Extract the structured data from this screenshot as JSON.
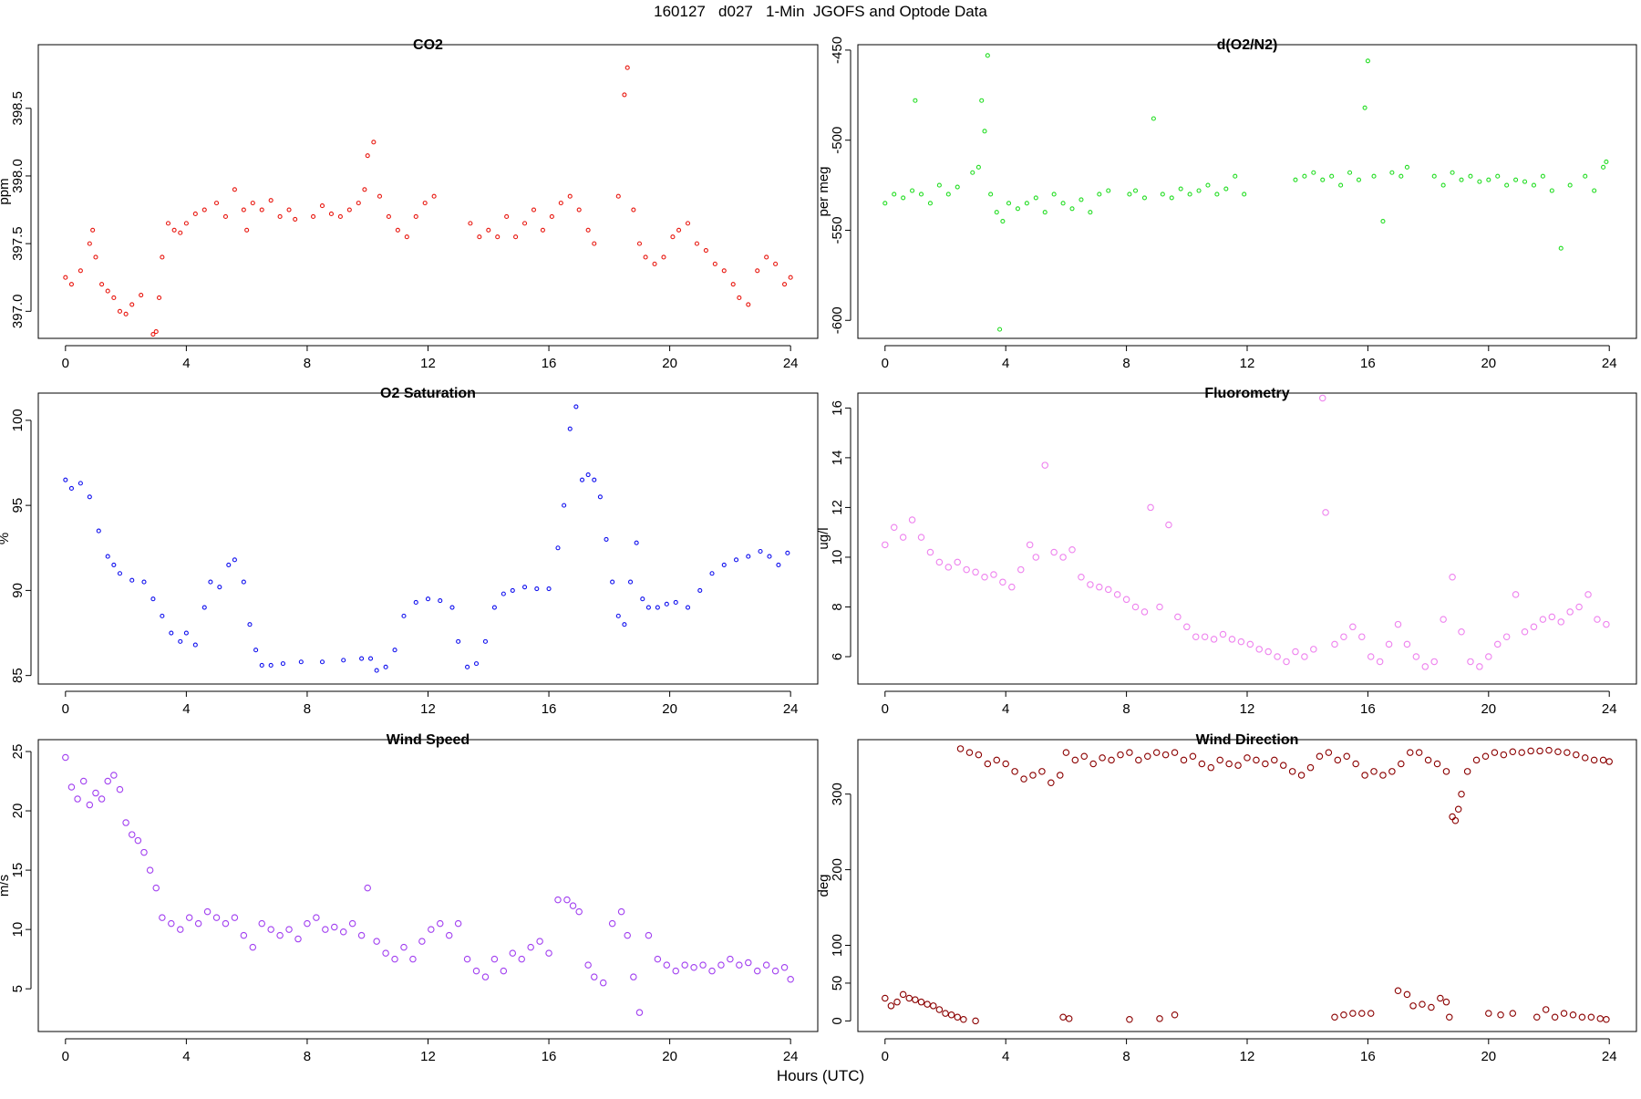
{
  "figure": {
    "title": "160127   d027   1-Min  JGOFS and Optode Data",
    "xlabel": "Hours (UTC)"
  },
  "chart_data": [
    {
      "type": "scatter",
      "title": "CO2",
      "ylabel": "ppm",
      "color": "#e8170f",
      "xlim": [
        -0.9,
        24.9
      ],
      "ylim": [
        396.8,
        398.97
      ],
      "yticks": [
        397.0,
        397.5,
        398.0,
        398.5
      ],
      "ytick_labels": [
        "397.0",
        "397.5",
        "398.0",
        "398.5"
      ],
      "xticks": [
        0,
        4,
        8,
        12,
        16,
        20,
        24
      ],
      "ytick_style": "rotated",
      "x": [
        0,
        0.2,
        0.5,
        0.8,
        0.9,
        1.0,
        1.2,
        1.4,
        1.6,
        1.8,
        2.0,
        2.2,
        2.5,
        2.9,
        3.0,
        3.1,
        3.2,
        3.4,
        3.6,
        3.8,
        4.0,
        4.3,
        4.6,
        5.0,
        5.3,
        5.6,
        5.9,
        6.0,
        6.2,
        6.5,
        6.8,
        7.1,
        7.4,
        7.6,
        8.2,
        8.5,
        8.8,
        9.1,
        9.4,
        9.7,
        9.9,
        10.0,
        10.2,
        10.4,
        10.7,
        11.0,
        11.3,
        11.6,
        11.9,
        12.2,
        13.4,
        13.7,
        14.0,
        14.3,
        14.6,
        14.9,
        15.2,
        15.5,
        15.8,
        16.1,
        16.4,
        16.7,
        17.0,
        17.3,
        17.5,
        18.3,
        18.5,
        18.6,
        18.8,
        19.0,
        19.2,
        19.5,
        19.8,
        20.1,
        20.3,
        20.6,
        20.9,
        21.2,
        21.5,
        21.8,
        22.1,
        22.3,
        22.6,
        22.9,
        23.2,
        23.5,
        23.8,
        24.0
      ],
      "y": [
        397.25,
        397.2,
        397.3,
        397.5,
        397.6,
        397.4,
        397.2,
        397.15,
        397.1,
        397.0,
        396.98,
        397.05,
        397.12,
        396.83,
        396.85,
        397.1,
        397.4,
        397.65,
        397.6,
        397.58,
        397.65,
        397.72,
        397.75,
        397.8,
        397.7,
        397.9,
        397.75,
        397.6,
        397.8,
        397.75,
        397.82,
        397.7,
        397.75,
        397.68,
        397.7,
        397.78,
        397.72,
        397.7,
        397.75,
        397.8,
        397.9,
        398.15,
        398.25,
        397.85,
        397.7,
        397.6,
        397.55,
        397.7,
        397.8,
        397.85,
        397.65,
        397.55,
        397.6,
        397.55,
        397.7,
        397.55,
        397.65,
        397.75,
        397.6,
        397.7,
        397.8,
        397.85,
        397.75,
        397.6,
        397.5,
        397.85,
        398.6,
        398.8,
        397.75,
        397.5,
        397.4,
        397.35,
        397.4,
        397.55,
        397.6,
        397.65,
        397.5,
        397.45,
        397.35,
        397.3,
        397.2,
        397.1,
        397.05,
        397.3,
        397.4,
        397.35,
        397.2,
        397.25
      ]
    },
    {
      "type": "scatter",
      "title": "d(O2/N2)",
      "ylabel": "per meg",
      "color": "#22dd22",
      "xlim": [
        -0.9,
        24.9
      ],
      "ylim": [
        -610,
        -447
      ],
      "yticks": [
        -600,
        -550,
        -500,
        -450
      ],
      "ytick_labels": [
        "-600",
        "-550",
        "-500",
        "-450"
      ],
      "xticks": [
        0,
        4,
        8,
        12,
        16,
        20,
        24
      ],
      "ytick_style": "rotated",
      "x": [
        0,
        0.3,
        0.6,
        0.9,
        1.0,
        1.2,
        1.5,
        1.8,
        2.1,
        2.4,
        2.9,
        3.1,
        3.2,
        3.3,
        3.4,
        3.5,
        3.7,
        3.8,
        3.9,
        4.1,
        4.4,
        4.7,
        5.0,
        5.3,
        5.6,
        5.9,
        6.2,
        6.5,
        6.8,
        7.1,
        7.4,
        8.1,
        8.3,
        8.6,
        8.9,
        9.2,
        9.5,
        9.8,
        10.1,
        10.4,
        10.7,
        11.0,
        11.3,
        11.6,
        11.9,
        13.6,
        13.9,
        14.2,
        14.5,
        14.8,
        15.1,
        15.4,
        15.7,
        15.9,
        16.0,
        16.2,
        16.5,
        16.8,
        17.1,
        17.3,
        18.2,
        18.5,
        18.8,
        19.1,
        19.4,
        19.7,
        20.0,
        20.3,
        20.6,
        20.9,
        21.2,
        21.5,
        21.8,
        22.1,
        22.4,
        22.7,
        23.2,
        23.5,
        23.8,
        23.9
      ],
      "y": [
        -535,
        -530,
        -532,
        -528,
        -478,
        -530,
        -535,
        -525,
        -530,
        -526,
        -518,
        -515,
        -478,
        -495,
        -453,
        -530,
        -540,
        -605,
        -545,
        -535,
        -538,
        -535,
        -532,
        -540,
        -530,
        -535,
        -538,
        -533,
        -540,
        -530,
        -528,
        -530,
        -528,
        -532,
        -488,
        -530,
        -532,
        -527,
        -530,
        -528,
        -525,
        -530,
        -527,
        -520,
        -530,
        -522,
        -520,
        -518,
        -522,
        -520,
        -525,
        -518,
        -522,
        -482,
        -456,
        -520,
        -545,
        -518,
        -520,
        -515,
        -520,
        -525,
        -518,
        -522,
        -520,
        -523,
        -522,
        -520,
        -525,
        -522,
        -523,
        -525,
        -520,
        -528,
        -560,
        -525,
        -520,
        -528,
        -515,
        -512
      ]
    },
    {
      "type": "scatter",
      "title": "O2 Saturation",
      "ylabel": "%",
      "color": "#1010ee",
      "xlim": [
        -0.9,
        24.9
      ],
      "ylim": [
        84.5,
        101.6
      ],
      "yticks": [
        85,
        90,
        95,
        100
      ],
      "ytick_labels": [
        "85",
        "90",
        "95",
        "100"
      ],
      "xticks": [
        0,
        4,
        8,
        12,
        16,
        20,
        24
      ],
      "ytick_style": "rotated",
      "x": [
        0,
        0.2,
        0.5,
        0.8,
        1.1,
        1.4,
        1.6,
        1.8,
        2.2,
        2.6,
        2.9,
        3.2,
        3.5,
        3.8,
        4.0,
        4.3,
        4.6,
        4.8,
        5.1,
        5.4,
        5.6,
        5.9,
        6.1,
        6.3,
        6.5,
        6.8,
        7.2,
        7.8,
        8.5,
        9.2,
        9.8,
        10.1,
        10.3,
        10.6,
        10.9,
        11.2,
        11.6,
        12.0,
        12.4,
        12.8,
        13.0,
        13.3,
        13.6,
        13.9,
        14.2,
        14.5,
        14.8,
        15.2,
        15.6,
        16.0,
        16.3,
        16.5,
        16.7,
        16.9,
        17.1,
        17.3,
        17.5,
        17.7,
        17.9,
        18.1,
        18.3,
        18.5,
        18.7,
        18.9,
        19.1,
        19.3,
        19.6,
        19.9,
        20.2,
        20.6,
        21.0,
        21.4,
        21.8,
        22.2,
        22.6,
        23.0,
        23.3,
        23.6,
        23.9
      ],
      "y": [
        96.5,
        96.0,
        96.3,
        95.5,
        93.5,
        92.0,
        91.5,
        91.0,
        90.6,
        90.5,
        89.5,
        88.5,
        87.5,
        87.0,
        87.5,
        86.8,
        89.0,
        90.5,
        90.2,
        91.5,
        91.8,
        90.5,
        88.0,
        86.5,
        85.6,
        85.6,
        85.7,
        85.8,
        85.8,
        85.9,
        86.0,
        86.0,
        85.3,
        85.5,
        86.5,
        88.5,
        89.3,
        89.5,
        89.4,
        89.0,
        87.0,
        85.5,
        85.7,
        87.0,
        89.0,
        89.8,
        90.0,
        90.2,
        90.1,
        90.1,
        92.5,
        95.0,
        99.5,
        100.8,
        96.5,
        96.8,
        96.5,
        95.5,
        93.0,
        90.5,
        88.5,
        88.0,
        90.5,
        92.8,
        89.5,
        89.0,
        89.0,
        89.2,
        89.3,
        89.0,
        90.0,
        91.0,
        91.5,
        91.8,
        92.0,
        92.3,
        92.0,
        91.5,
        92.2
      ]
    },
    {
      "type": "scatter",
      "title": "Fluorometry",
      "ylabel": "ug/l",
      "color": "#ee82ee",
      "xlim": [
        -0.9,
        24.9
      ],
      "ylim": [
        4.9,
        16.6
      ],
      "yticks": [
        6,
        8,
        10,
        12,
        14,
        16
      ],
      "ytick_labels": [
        "6",
        "8",
        "10",
        "12",
        "14",
        "16"
      ],
      "xticks": [
        0,
        4,
        8,
        12,
        16,
        20,
        24
      ],
      "ytick_style": "rotated",
      "x": [
        0,
        0.3,
        0.6,
        0.9,
        1.2,
        1.5,
        1.8,
        2.1,
        2.4,
        2.7,
        3.0,
        3.3,
        3.6,
        3.9,
        4.2,
        4.5,
        4.8,
        5.0,
        5.3,
        5.6,
        5.9,
        6.2,
        6.5,
        6.8,
        7.1,
        7.4,
        7.7,
        8.0,
        8.3,
        8.6,
        8.8,
        9.1,
        9.4,
        9.7,
        10.0,
        10.3,
        10.6,
        10.9,
        11.2,
        11.5,
        11.8,
        12.1,
        12.4,
        12.7,
        13.0,
        13.3,
        13.6,
        13.9,
        14.2,
        14.5,
        14.6,
        14.9,
        15.2,
        15.5,
        15.8,
        16.1,
        16.4,
        16.7,
        17.0,
        17.3,
        17.6,
        17.9,
        18.2,
        18.5,
        18.8,
        19.1,
        19.4,
        19.7,
        20.0,
        20.3,
        20.6,
        20.9,
        21.2,
        21.5,
        21.8,
        22.1,
        22.4,
        22.7,
        23.0,
        23.3,
        23.6,
        23.9
      ],
      "y": [
        10.5,
        11.2,
        10.8,
        11.5,
        10.8,
        10.2,
        9.8,
        9.6,
        9.8,
        9.5,
        9.4,
        9.2,
        9.3,
        9.0,
        8.8,
        9.5,
        10.5,
        10.0,
        13.7,
        10.2,
        10.0,
        10.3,
        9.2,
        8.9,
        8.8,
        8.7,
        8.5,
        8.3,
        8.0,
        7.8,
        12.0,
        8.0,
        11.3,
        7.6,
        7.2,
        6.8,
        6.8,
        6.7,
        6.9,
        6.7,
        6.6,
        6.5,
        6.3,
        6.2,
        6.0,
        5.8,
        6.2,
        6.0,
        6.3,
        16.4,
        11.8,
        6.5,
        6.8,
        7.2,
        6.8,
        6.0,
        5.8,
        6.5,
        7.3,
        6.5,
        6.0,
        5.6,
        5.8,
        7.5,
        9.2,
        7.0,
        5.8,
        5.6,
        6.0,
        6.5,
        6.8,
        8.5,
        7.0,
        7.2,
        7.5,
        7.6,
        7.4,
        7.8,
        8.0,
        8.5,
        7.5,
        7.3
      ]
    },
    {
      "type": "scatter",
      "title": "Wind Speed",
      "ylabel": "m/s",
      "color": "#a13ff0",
      "xlim": [
        -0.9,
        24.9
      ],
      "ylim": [
        1.4,
        26.0
      ],
      "yticks": [
        5,
        10,
        15,
        20,
        25
      ],
      "ytick_labels": [
        "5",
        "10",
        "15",
        "20",
        "25"
      ],
      "xticks": [
        0,
        4,
        8,
        12,
        16,
        20,
        24
      ],
      "ytick_style": "rotated",
      "x": [
        0,
        0.2,
        0.4,
        0.6,
        0.8,
        1.0,
        1.2,
        1.4,
        1.6,
        1.8,
        2.0,
        2.2,
        2.4,
        2.6,
        2.8,
        3.0,
        3.2,
        3.5,
        3.8,
        4.1,
        4.4,
        4.7,
        5.0,
        5.3,
        5.6,
        5.9,
        6.2,
        6.5,
        6.8,
        7.1,
        7.4,
        7.7,
        8.0,
        8.3,
        8.6,
        8.9,
        9.2,
        9.5,
        9.8,
        10.0,
        10.3,
        10.6,
        10.9,
        11.2,
        11.5,
        11.8,
        12.1,
        12.4,
        12.7,
        13.0,
        13.3,
        13.6,
        13.9,
        14.2,
        14.5,
        14.8,
        15.1,
        15.4,
        15.7,
        16.0,
        16.3,
        16.6,
        16.8,
        17.0,
        17.3,
        17.5,
        17.8,
        18.1,
        18.4,
        18.6,
        18.8,
        19.0,
        19.3,
        19.6,
        19.9,
        20.2,
        20.5,
        20.8,
        21.1,
        21.4,
        21.7,
        22.0,
        22.3,
        22.6,
        22.9,
        23.2,
        23.5,
        23.8,
        24.0
      ],
      "y": [
        24.5,
        22.0,
        21.0,
        22.5,
        20.5,
        21.5,
        21.0,
        22.5,
        23.0,
        21.8,
        19.0,
        18.0,
        17.5,
        16.5,
        15.0,
        13.5,
        11.0,
        10.5,
        10.0,
        11.0,
        10.5,
        11.5,
        11.0,
        10.5,
        11.0,
        9.5,
        8.5,
        10.5,
        10.0,
        9.5,
        10.0,
        9.2,
        10.5,
        11.0,
        10.0,
        10.2,
        9.8,
        10.5,
        9.5,
        13.5,
        9.0,
        8.0,
        7.5,
        8.5,
        7.5,
        9.0,
        10.0,
        10.5,
        9.5,
        10.5,
        7.5,
        6.5,
        6.0,
        7.5,
        6.5,
        8.0,
        7.5,
        8.5,
        9.0,
        8.0,
        12.5,
        12.5,
        12.0,
        11.5,
        7.0,
        6.0,
        5.5,
        10.5,
        11.5,
        9.5,
        6.0,
        3.0,
        9.5,
        7.5,
        7.0,
        6.5,
        7.0,
        6.8,
        7.0,
        6.5,
        7.0,
        7.5,
        7.0,
        7.2,
        6.5,
        7.0,
        6.5,
        6.8,
        5.8
      ]
    },
    {
      "type": "scatter",
      "title": "Wind Direction",
      "ylabel": "deg",
      "color": "#8b0000",
      "xlim": [
        -0.9,
        24.9
      ],
      "ylim": [
        -14,
        372
      ],
      "yticks": [
        0,
        50,
        100,
        200,
        300
      ],
      "ytick_labels": [
        "0",
        "50",
        "100",
        "200",
        "300"
      ],
      "xticks": [
        0,
        4,
        8,
        12,
        16,
        20,
        24
      ],
      "ytick_style": "rotated",
      "x": [
        0,
        0.2,
        0.4,
        0.6,
        0.8,
        1.0,
        1.2,
        1.4,
        1.6,
        1.8,
        2.0,
        2.2,
        2.4,
        2.6,
        3.0,
        2.5,
        2.8,
        3.1,
        3.4,
        3.7,
        4.0,
        4.3,
        4.6,
        4.9,
        5.2,
        5.5,
        5.8,
        6.0,
        6.3,
        6.6,
        6.9,
        7.2,
        7.5,
        7.8,
        8.1,
        8.4,
        8.7,
        9.0,
        9.3,
        9.6,
        9.9,
        10.2,
        10.5,
        10.8,
        11.1,
        11.4,
        11.7,
        12.0,
        12.3,
        12.6,
        12.9,
        13.2,
        13.5,
        13.8,
        14.1,
        14.4,
        14.7,
        15.0,
        15.3,
        15.6,
        15.9,
        16.2,
        16.5,
        16.8,
        17.1,
        17.4,
        17.7,
        18.0,
        18.3,
        18.6,
        18.8,
        18.9,
        19.0,
        19.1,
        19.3,
        19.6,
        19.9,
        20.2,
        20.5,
        20.8,
        21.1,
        21.4,
        21.7,
        22.0,
        22.3,
        22.6,
        22.9,
        23.2,
        23.5,
        23.8,
        24.0,
        5.9,
        6.1,
        8.1,
        9.1,
        9.6,
        14.9,
        15.2,
        15.5,
        15.8,
        16.1,
        17.0,
        17.3,
        17.5,
        17.8,
        18.1,
        18.4,
        18.6,
        18.7,
        20.0,
        20.4,
        20.8,
        21.6,
        21.9,
        22.2,
        22.5,
        22.8,
        23.1,
        23.4,
        23.7,
        23.9
      ],
      "y": [
        30,
        20,
        25,
        35,
        30,
        28,
        25,
        22,
        20,
        15,
        10,
        8,
        5,
        2,
        0,
        360,
        355,
        352,
        340,
        345,
        340,
        330,
        320,
        325,
        330,
        315,
        325,
        355,
        345,
        350,
        340,
        348,
        345,
        352,
        355,
        345,
        350,
        355,
        352,
        355,
        345,
        350,
        340,
        335,
        345,
        340,
        338,
        348,
        345,
        340,
        345,
        338,
        330,
        325,
        335,
        350,
        355,
        345,
        350,
        340,
        325,
        330,
        325,
        330,
        340,
        355,
        355,
        345,
        340,
        330,
        270,
        265,
        280,
        300,
        330,
        345,
        350,
        355,
        352,
        356,
        355,
        357,
        357,
        358,
        356,
        355,
        352,
        348,
        345,
        345,
        343,
        5,
        3,
        2,
        3,
        8,
        5,
        8,
        10,
        10,
        10,
        40,
        35,
        20,
        22,
        18,
        30,
        25,
        5,
        10,
        8,
        10,
        5,
        15,
        5,
        10,
        8,
        5,
        5,
        3,
        2
      ]
    }
  ]
}
